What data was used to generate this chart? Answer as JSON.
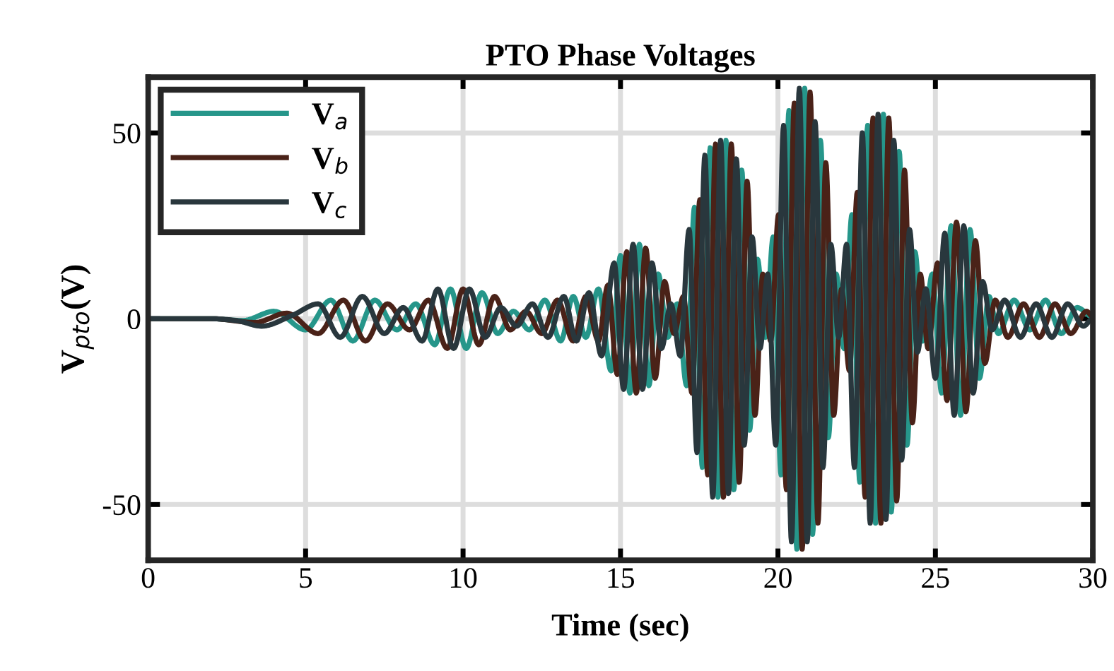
{
  "chart_data": {
    "type": "line",
    "title": "PTO Phase Voltages",
    "xlabel": "Time (sec)",
    "ylabel": "V$_{pto}$(V)",
    "xlim": [
      0,
      30
    ],
    "ylim": [
      -65,
      65
    ],
    "xticks": [
      0,
      5,
      10,
      15,
      20,
      25,
      30
    ],
    "yticks": [
      -50,
      0,
      50
    ],
    "grid": true,
    "legend": "top left",
    "marker": "none",
    "line_style": "solid",
    "series": [
      {
        "name": "V$_{a}$",
        "color": "#26968a",
        "x": [
          0,
          2,
          3,
          4,
          5,
          5.8,
          6.5,
          7.2,
          7.9,
          8.5,
          9.1,
          9.6,
          10.1,
          10.6,
          11.1,
          11.6,
          12.1,
          12.6,
          13.1,
          13.5,
          13.9,
          14.3,
          14.7,
          15.0,
          15.3,
          15.6,
          15.9,
          16.2,
          16.5,
          16.8,
          17.1,
          17.35,
          17.6,
          17.85,
          18.1,
          18.35,
          18.6,
          18.85,
          19.1,
          19.35,
          19.6,
          19.85,
          20.1,
          20.35,
          20.6,
          20.85,
          21.1,
          21.35,
          21.6,
          21.85,
          22.1,
          22.35,
          22.6,
          22.85,
          23.1,
          23.35,
          23.6,
          23.85,
          24.1,
          24.35,
          24.6,
          24.9,
          25.2,
          25.5,
          25.8,
          26.1,
          26.4,
          26.7,
          27.0,
          27.5,
          28.0,
          28.5,
          29.0,
          29.5,
          30
        ],
        "values": [
          0,
          0,
          -0.5,
          2,
          -3,
          5,
          -6,
          5,
          -3,
          4,
          -7,
          8,
          -8,
          7,
          -4,
          2,
          -3,
          5,
          -6,
          6,
          -5,
          8,
          -14,
          17,
          -20,
          20,
          -18,
          12,
          -5,
          4,
          -18,
          30,
          -40,
          46,
          -48,
          48,
          -46,
          40,
          -30,
          16,
          -5,
          22,
          -42,
          56,
          -62,
          62,
          -58,
          48,
          -32,
          12,
          -8,
          28,
          -44,
          52,
          -55,
          55,
          -52,
          45,
          -34,
          18,
          -6,
          12,
          -20,
          25,
          -26,
          24,
          -16,
          6,
          -4,
          5,
          -3,
          5,
          -4,
          3,
          0.5
        ]
      },
      {
        "name": "V$_{b}$",
        "color": "#4a2218",
        "x": [
          0,
          2,
          3.4,
          4.4,
          5.4,
          6.2,
          6.9,
          7.6,
          8.3,
          8.9,
          9.5,
          10.0,
          10.5,
          11.0,
          11.5,
          12.0,
          12.5,
          13.0,
          13.5,
          13.9,
          14.3,
          14.6,
          14.9,
          15.2,
          15.5,
          15.8,
          16.1,
          16.4,
          16.7,
          17.0,
          17.27,
          17.52,
          17.77,
          18.02,
          18.27,
          18.52,
          18.77,
          19.02,
          19.27,
          19.52,
          19.77,
          20.02,
          20.27,
          20.52,
          20.77,
          21.02,
          21.27,
          21.52,
          21.77,
          22.02,
          22.27,
          22.52,
          22.77,
          23.02,
          23.27,
          23.52,
          23.77,
          24.02,
          24.27,
          24.52,
          24.77,
          25.07,
          25.37,
          25.67,
          25.97,
          26.27,
          26.57,
          26.9,
          27.3,
          27.8,
          28.3,
          28.8,
          29.3,
          29.8,
          30
        ],
        "values": [
          0,
          0,
          -1,
          1.5,
          -4,
          5,
          -6,
          4,
          -3,
          5,
          -8,
          8,
          -7,
          6,
          -3,
          2,
          -4,
          5,
          -6,
          6,
          -6,
          9,
          -15,
          18,
          -20,
          19,
          -16,
          10,
          -4,
          6,
          -20,
          32,
          -42,
          47,
          -48,
          47,
          -44,
          37,
          -26,
          12,
          -6,
          28,
          -46,
          58,
          -62,
          61,
          -55,
          42,
          -26,
          8,
          -14,
          34,
          -48,
          54,
          -55,
          54,
          -49,
          40,
          -28,
          12,
          -8,
          15,
          -22,
          26,
          -25,
          21,
          -12,
          5,
          -5,
          4,
          -5,
          4,
          -4,
          2,
          0.5
        ]
      },
      {
        "name": "V$_{c}$",
        "color": "#29373d",
        "x": [
          0,
          2,
          2.8,
          3.6,
          4.6,
          5.4,
          6.1,
          6.8,
          7.5,
          8.1,
          8.7,
          9.2,
          9.7,
          10.2,
          10.7,
          11.2,
          11.7,
          12.2,
          12.7,
          13.2,
          13.6,
          14.0,
          14.4,
          14.8,
          15.1,
          15.4,
          15.7,
          16.0,
          16.3,
          16.6,
          16.9,
          17.18,
          17.43,
          17.68,
          17.93,
          18.18,
          18.43,
          18.68,
          18.93,
          19.18,
          19.43,
          19.68,
          19.93,
          20.18,
          20.43,
          20.68,
          20.93,
          21.18,
          21.43,
          21.68,
          21.93,
          22.18,
          22.43,
          22.68,
          22.93,
          23.18,
          23.43,
          23.68,
          23.93,
          24.18,
          24.43,
          24.7,
          25.0,
          25.3,
          25.6,
          25.9,
          26.2,
          26.5,
          26.8,
          27.2,
          27.7,
          28.2,
          28.7,
          29.2,
          29.7,
          30
        ],
        "values": [
          0,
          0,
          -0.5,
          -2,
          1,
          4,
          -5,
          6,
          -4,
          3,
          -6,
          8,
          -8,
          8,
          -5,
          3,
          -2,
          4,
          -5,
          6,
          -6,
          7,
          -10,
          15,
          -19,
          20,
          -19,
          15,
          -8,
          4,
          -10,
          24,
          -36,
          44,
          -48,
          48,
          -47,
          43,
          -34,
          22,
          -8,
          12,
          -34,
          52,
          -60,
          62,
          -60,
          53,
          -40,
          20,
          -5,
          20,
          -40,
          50,
          -55,
          55,
          -54,
          48,
          -38,
          24,
          -9,
          8,
          -16,
          23,
          -26,
          25,
          -20,
          10,
          -3,
          5,
          -5,
          4,
          -5,
          4,
          -2,
          0
        ]
      }
    ]
  }
}
